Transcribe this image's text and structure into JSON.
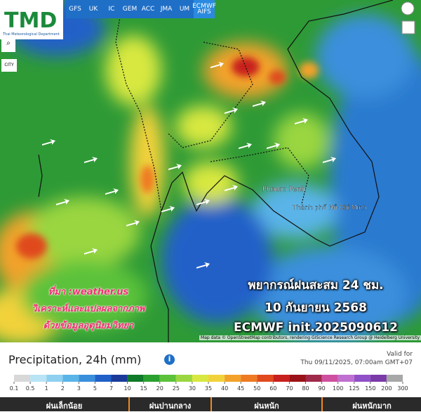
{
  "logo": {
    "title": "TMD",
    "subtitle": "Thai Meteorological Department"
  },
  "models": [
    "GFS",
    "UK",
    "IC",
    "GEM",
    "ACC",
    "JMA",
    "UM",
    "ECMWF AIFS"
  ],
  "controls": {
    "city": "CITY"
  },
  "map_labels": [
    "Phnom Penh",
    "Thành phố Hồ Chí Minh"
  ],
  "overlay": {
    "lines": [
      "พยากรณ์ฝนสะสม 24 ชม.",
      "10 กันยายน 2568",
      "ECMWF init.2025090612"
    ]
  },
  "source": {
    "lines": [
      "ที่มา :weather.us",
      "วิเคราะห์และแปลผลจากภาพ",
      "ด้วยข้อมูลอุตุนิยมวิทยา"
    ]
  },
  "attribution": "Map data © OpenStreetMap contributors, rendering GIScience Research Group @ Heidelberg University",
  "legend": {
    "title": "Precipitation, 24h (mm)",
    "valid_label": "Valid for",
    "valid_time": "Thu 09/11/2025, 07:00am GMT+07",
    "stops": [
      0.1,
      0.5,
      1,
      2,
      3,
      5,
      7,
      10,
      15,
      20,
      25,
      30,
      35,
      40,
      45,
      50,
      60,
      70,
      80,
      90,
      100,
      125,
      150,
      200,
      300
    ],
    "colors": [
      "#d8d8d8",
      "#b8e4f5",
      "#8fd0f0",
      "#5ab4e8",
      "#3a8fdc",
      "#2060c8",
      "#1a3a9a",
      "#0f7a2a",
      "#2aa030",
      "#5cc23a",
      "#9ad640",
      "#d8e840",
      "#f2d23a",
      "#f2a22a",
      "#ee7a22",
      "#e04a1e",
      "#c8201e",
      "#9a1218",
      "#a02a4a",
      "#d050a0",
      "#c070d0",
      "#9050c8",
      "#7a3aa8",
      "#a8a8a8"
    ],
    "categories": [
      "ฝนเล็กน้อย",
      "ฝนปานกลาง",
      "ฝนหนัก",
      "ฝนหนักมาก"
    ]
  }
}
